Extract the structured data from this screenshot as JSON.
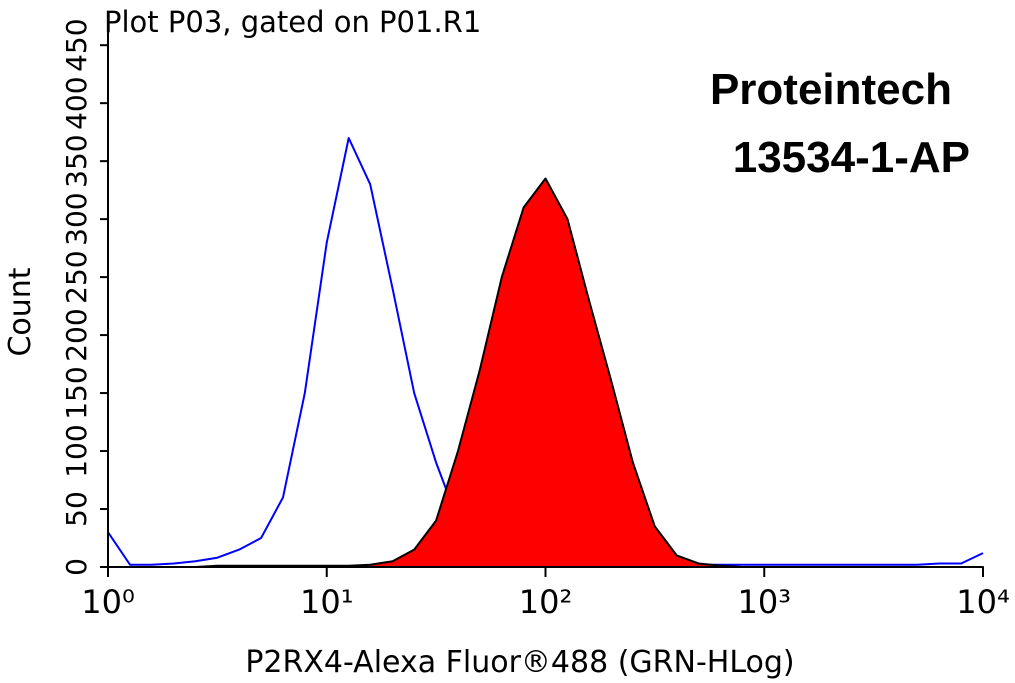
{
  "chart_data": {
    "type": "histogram-overlay",
    "title": "Plot P03, gated on P01.R1",
    "annotations": [
      "Proteintech",
      "13534-1-AP"
    ],
    "x_label": "P2RX4-Alexa Fluor®488 (GRN-HLog)",
    "y_label": "Count",
    "xscale": "log",
    "xlim": [
      1,
      10000
    ],
    "xticks": [
      {
        "value": 1,
        "label": "10⁰"
      },
      {
        "value": 10,
        "label": "10¹"
      },
      {
        "value": 100,
        "label": "10²"
      },
      {
        "value": 1000,
        "label": "10³"
      },
      {
        "value": 10000,
        "label": "10⁴"
      }
    ],
    "ylim": [
      0,
      470
    ],
    "yticks": [
      0,
      50,
      100,
      150,
      200,
      250,
      300,
      350,
      400,
      450
    ],
    "x": [
      1,
      1.26,
      1.58,
      2,
      2.51,
      3.16,
      3.98,
      5.01,
      6.31,
      7.94,
      10,
      12.6,
      15.8,
      20,
      25.1,
      31.6,
      39.8,
      50.1,
      63.1,
      79.4,
      100,
      126,
      158,
      200,
      251,
      316,
      398,
      501,
      631,
      794,
      1000,
      1260,
      1580,
      2000,
      2510,
      3160,
      3980,
      5010,
      6310,
      7940,
      10000
    ],
    "series": [
      {
        "color": "#0000ff",
        "fill": false,
        "values": [
          30,
          2,
          2,
          3,
          5,
          8,
          15,
          25,
          60,
          150,
          280,
          370,
          330,
          240,
          150,
          90,
          40,
          10,
          4,
          3,
          3,
          3,
          3,
          3,
          3,
          2,
          2,
          2,
          2,
          2,
          2,
          2,
          2,
          2,
          2,
          2,
          2,
          2,
          3,
          3,
          12
        ]
      },
      {
        "color": "#ff0000",
        "fill": true,
        "values": [
          0,
          0,
          0,
          0,
          0,
          1,
          1,
          1,
          1,
          1,
          1,
          1,
          2,
          5,
          15,
          40,
          100,
          170,
          250,
          310,
          335,
          300,
          230,
          160,
          90,
          35,
          10,
          3,
          1,
          0,
          0,
          0,
          0,
          0,
          0,
          0,
          0,
          0,
          0,
          0,
          0
        ]
      }
    ]
  }
}
